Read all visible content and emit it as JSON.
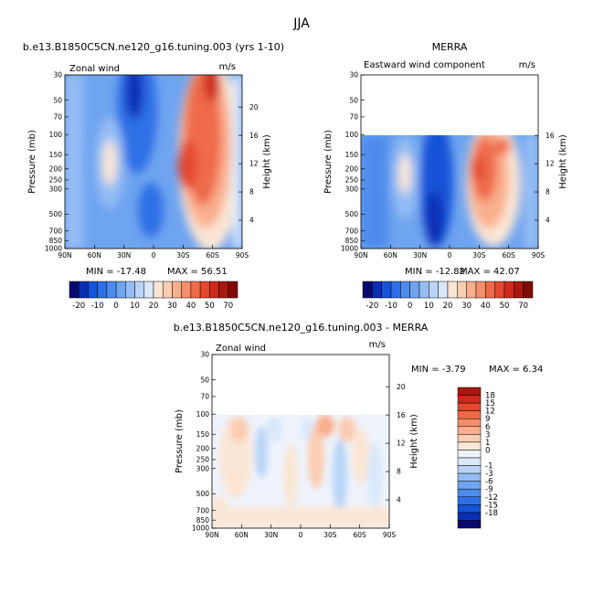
{
  "chart_data": {
    "type": "heatmap",
    "title": "JJA",
    "panels": [
      {
        "id": "model",
        "title": "b.e13.B1850C5CN.ne120_g16.tuning.003 (yrs 1-10)",
        "left_label": "Zonal wind",
        "right_label": "m/s",
        "ylabel": "Pressure (mb)",
        "ylabel_right": "Height (km)",
        "x_ticks": [
          "90N",
          "60N",
          "30N",
          "0",
          "30S",
          "60S",
          "90S"
        ],
        "y_ticks": [
          "30",
          "50",
          "70",
          "100",
          "150",
          "200",
          "250",
          "300",
          "500",
          "700",
          "850",
          "1000"
        ],
        "height_ticks": [
          "20",
          "16",
          "12",
          "8",
          "4"
        ],
        "pressure_range": [
          30,
          1000
        ],
        "data_top_pressure": 30,
        "min_text": "MIN = -17.48",
        "max_text": "MAX =  56.51",
        "value_range": [
          -17.48,
          56.51
        ]
      },
      {
        "id": "obs",
        "title": "MERRA",
        "left_label": "Eastward wind component",
        "right_label": "m/s",
        "ylabel": "Pressure (mb)",
        "ylabel_right": "Height (km)",
        "x_ticks": [
          "90N",
          "60N",
          "30N",
          "0",
          "30S",
          "60S",
          "90S"
        ],
        "y_ticks": [
          "30",
          "50",
          "70",
          "100",
          "150",
          "200",
          "250",
          "300",
          "500",
          "700",
          "850",
          "1000"
        ],
        "height_ticks": [
          "16",
          "12",
          "8",
          "4"
        ],
        "pressure_range": [
          30,
          1000
        ],
        "data_top_pressure": 100,
        "min_text": "MIN = -12.82",
        "max_text": "MAX =  42.07",
        "value_range": [
          -12.82,
          42.07
        ]
      },
      {
        "id": "diff",
        "title": "b.e13.B1850C5CN.ne120_g16.tuning.003 - MERRA",
        "left_label": "Zonal wind",
        "right_label": "m/s",
        "ylabel": "Pressure (mb)",
        "ylabel_right": "Height (km)",
        "x_ticks": [
          "90N",
          "60N",
          "30N",
          "0",
          "30S",
          "60S",
          "90S"
        ],
        "y_ticks": [
          "30",
          "50",
          "70",
          "100",
          "150",
          "200",
          "250",
          "300",
          "500",
          "700",
          "850",
          "1000"
        ],
        "height_ticks": [
          "20",
          "16",
          "12",
          "8",
          "4"
        ],
        "pressure_range": [
          30,
          1000
        ],
        "data_top_pressure": 100,
        "min_text": "MIN =  -3.79",
        "max_text": "MAX =   6.34",
        "value_range": [
          -3.79,
          6.34
        ]
      }
    ],
    "colorbar_main": {
      "labels": [
        "-20",
        "-10",
        "0",
        "10",
        "20",
        "30",
        "40",
        "50",
        "70"
      ],
      "colors": [
        "#0a0a6e",
        "#0a2fb5",
        "#1553d8",
        "#2f6fe6",
        "#4d8ced",
        "#6fa4f0",
        "#95bdf4",
        "#bad4f8",
        "#d9e8fb",
        "#fbe6d6",
        "#fbcdb2",
        "#f9af8d",
        "#f58e6a",
        "#ee6b48",
        "#e4472e",
        "#cf2a1c",
        "#a8180f",
        "#800a05"
      ]
    },
    "colorbar_diff": {
      "labels": [
        "18",
        "15",
        "12",
        "9",
        "6",
        "3",
        "1",
        "0",
        "-1",
        "-3",
        "-6",
        "-9",
        "-12",
        "-15",
        "-18"
      ],
      "colors": [
        "#a8180f",
        "#cf2a1c",
        "#e4472e",
        "#ee6b48",
        "#f58e6a",
        "#f9af8d",
        "#fbcdb2",
        "#fbe6d6",
        "#eef3fb",
        "#d9e8fb",
        "#bad4f8",
        "#95bdf4",
        "#6fa4f0",
        "#4d8ced",
        "#2f6fe6",
        "#1553d8",
        "#0a2fb5",
        "#0a0a6e"
      ]
    }
  }
}
